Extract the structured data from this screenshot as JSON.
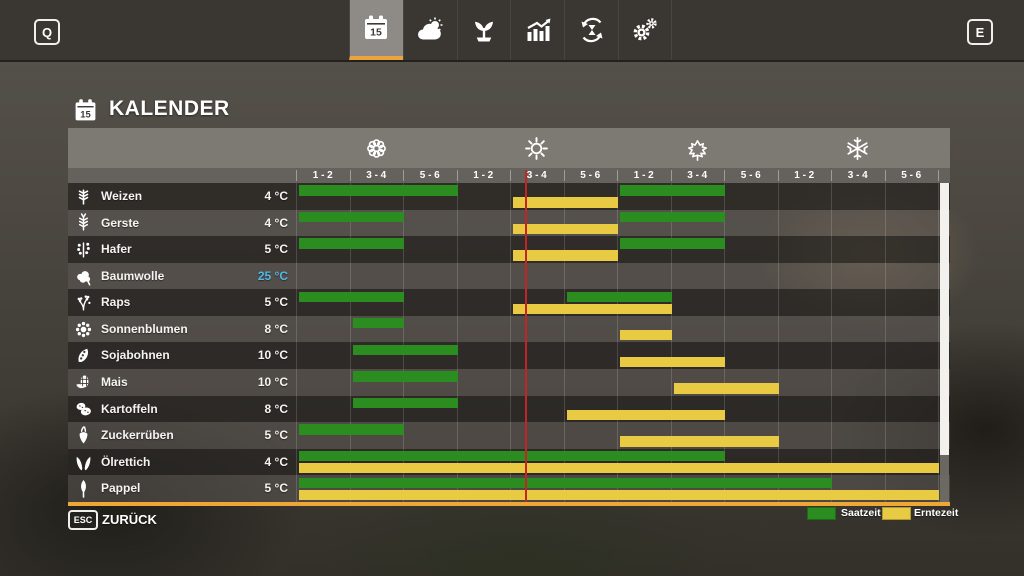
{
  "topbar": {
    "left_key": "Q",
    "right_key": "E",
    "tabs": [
      {
        "name": "calendar",
        "icon": "calendar-icon",
        "active": true
      },
      {
        "name": "weather",
        "icon": "weather-icon",
        "active": false
      },
      {
        "name": "crops",
        "icon": "plant-icon",
        "active": false
      },
      {
        "name": "statistics",
        "icon": "statistics-icon",
        "active": false
      },
      {
        "name": "rotation",
        "icon": "rotation-icon",
        "active": false
      },
      {
        "name": "settings",
        "icon": "settings-icon",
        "active": false
      }
    ]
  },
  "header": {
    "title": "KALENDER",
    "date_badge": "15"
  },
  "calendar": {
    "seasons": [
      {
        "name": "spring",
        "icon": "spring-blossom-icon"
      },
      {
        "name": "summer",
        "icon": "summer-sun-icon"
      },
      {
        "name": "autumn",
        "icon": "autumn-leaf-icon"
      },
      {
        "name": "winter",
        "icon": "winter-snowflake-icon"
      }
    ],
    "period_labels": [
      "1 - 2",
      "3 - 4",
      "5 - 6"
    ],
    "marker_x_percent": 35.7,
    "colors": {
      "sow": "#2b8c20",
      "harvest": "#e9cb43",
      "marker": "#c22525",
      "accent": "#eea737",
      "temp_highlight": "#4fb9e9"
    },
    "rows": [
      {
        "crop": "Weizen",
        "temp": "4 °C",
        "temp_highlight": false,
        "icon": "wheat-icon",
        "sow": [
          [
            1,
            3
          ],
          [
            7,
            8
          ]
        ],
        "harvest": [
          [
            5,
            6
          ]
        ]
      },
      {
        "crop": "Gerste",
        "temp": "4 °C",
        "temp_highlight": false,
        "icon": "barley-icon",
        "sow": [
          [
            1,
            2
          ],
          [
            7,
            8
          ]
        ],
        "harvest": [
          [
            5,
            6
          ]
        ]
      },
      {
        "crop": "Hafer",
        "temp": "5 °C",
        "temp_highlight": false,
        "icon": "oat-icon",
        "sow": [
          [
            1,
            2
          ],
          [
            7,
            8
          ]
        ],
        "harvest": [
          [
            5,
            6
          ]
        ]
      },
      {
        "crop": "Baumwolle",
        "temp": "25 °C",
        "temp_highlight": true,
        "icon": "cotton-icon",
        "sow": [],
        "harvest": []
      },
      {
        "crop": "Raps",
        "temp": "5 °C",
        "temp_highlight": false,
        "icon": "canola-icon",
        "sow": [
          [
            1,
            2
          ],
          [
            6,
            7
          ]
        ],
        "harvest": [
          [
            5,
            7
          ]
        ]
      },
      {
        "crop": "Sonnenblumen",
        "temp": "8 °C",
        "temp_highlight": false,
        "icon": "sunflower-icon",
        "sow": [
          [
            2,
            2
          ]
        ],
        "harvest": [
          [
            7,
            7
          ]
        ]
      },
      {
        "crop": "Sojabohnen",
        "temp": "10 °C",
        "temp_highlight": false,
        "icon": "soybean-icon",
        "sow": [
          [
            2,
            3
          ]
        ],
        "harvest": [
          [
            7,
            8
          ]
        ]
      },
      {
        "crop": "Mais",
        "temp": "10 °C",
        "temp_highlight": false,
        "icon": "corn-icon",
        "sow": [
          [
            2,
            3
          ]
        ],
        "harvest": [
          [
            8,
            9
          ]
        ]
      },
      {
        "crop": "Kartoffeln",
        "temp": "8 °C",
        "temp_highlight": false,
        "icon": "potato-icon",
        "sow": [
          [
            2,
            3
          ]
        ],
        "harvest": [
          [
            6,
            8
          ]
        ]
      },
      {
        "crop": "Zuckerrüben",
        "temp": "5 °C",
        "temp_highlight": false,
        "icon": "sugarbeet-icon",
        "sow": [
          [
            1,
            2
          ]
        ],
        "harvest": [
          [
            7,
            9
          ]
        ]
      },
      {
        "crop": "Ölrettich",
        "temp": "4 °C",
        "temp_highlight": false,
        "icon": "radish-icon",
        "sow": [
          [
            1,
            8
          ]
        ],
        "harvest": [
          [
            1,
            12
          ]
        ]
      },
      {
        "crop": "Pappel",
        "temp": "5 °C",
        "temp_highlight": false,
        "icon": "poplar-icon",
        "sow": [
          [
            1,
            10
          ]
        ],
        "harvest": [
          [
            1,
            12
          ]
        ]
      }
    ]
  },
  "footer": {
    "esc_key": "ESC",
    "back_label": "ZURÜCK",
    "legend": [
      {
        "label": "Saatzeit",
        "color": "#2b8c20"
      },
      {
        "label": "Erntezeit",
        "color": "#e9cb43"
      }
    ]
  }
}
